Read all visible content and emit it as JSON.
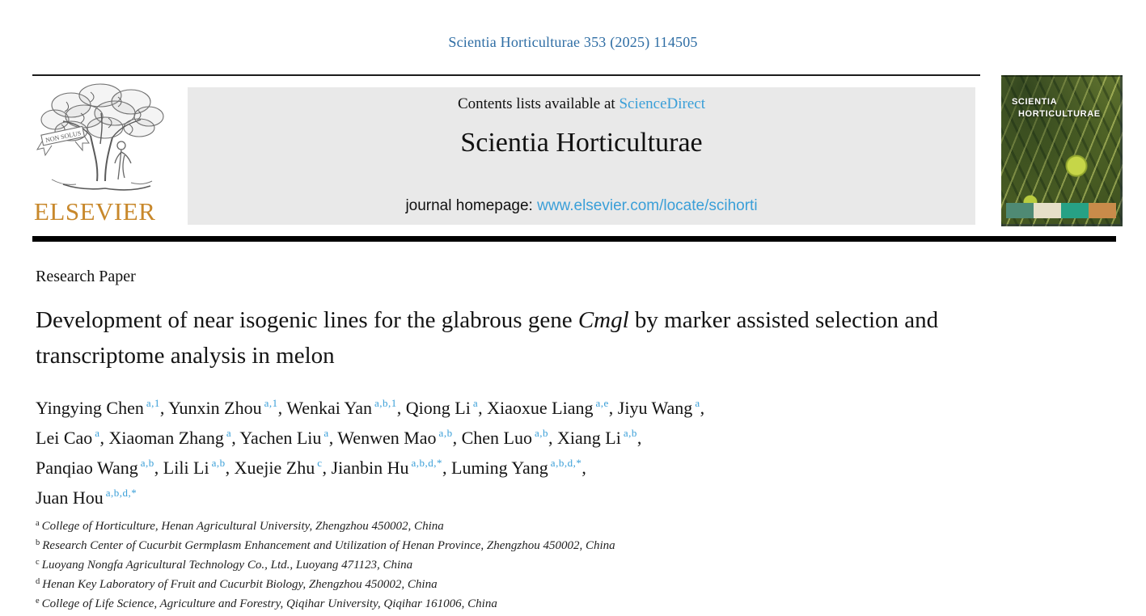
{
  "header": {
    "citation": "Scientia Horticulturae 353 (2025) 114505"
  },
  "banner": {
    "contents_prefix": "Contents lists available at ",
    "sciencedirect_label": "ScienceDirect",
    "journal_title": "Scientia Horticulturae",
    "homepage_prefix": "journal homepage: ",
    "homepage_url": "www.elsevier.com/locate/scihorti"
  },
  "logo": {
    "publisher": "ELSEVIER",
    "motto": "NON SOLUS"
  },
  "cover": {
    "title_line1": "SCIENTIA",
    "title_line2": "HORTICULTURAE",
    "strip_colors": [
      "#4f8a74",
      "#e6dfc8",
      "#27a185",
      "#c98b4a"
    ]
  },
  "article": {
    "type_label": "Research Paper",
    "title_pre": "Development of near isogenic lines for the glabrous gene ",
    "title_italic": "Cmgl",
    "title_post": " by marker assisted selection and transcriptome analysis in melon",
    "authors": [
      {
        "name": "Yingying Chen",
        "sup": "a,1"
      },
      {
        "name": "Yunxin Zhou",
        "sup": "a,1"
      },
      {
        "name": "Wenkai Yan",
        "sup": "a,b,1"
      },
      {
        "name": "Qiong Li",
        "sup": "a"
      },
      {
        "name": "Xiaoxue Liang",
        "sup": "a,e"
      },
      {
        "name": "Jiyu Wang",
        "sup": "a",
        "break_after": true
      },
      {
        "name": "Lei Cao",
        "sup": "a"
      },
      {
        "name": "Xiaoman Zhang",
        "sup": "a"
      },
      {
        "name": "Yachen Liu",
        "sup": "a"
      },
      {
        "name": "Wenwen Mao",
        "sup": "a,b"
      },
      {
        "name": "Chen Luo",
        "sup": "a,b"
      },
      {
        "name": "Xiang Li",
        "sup": "a,b",
        "break_after": true
      },
      {
        "name": "Panqiao Wang",
        "sup": "a,b"
      },
      {
        "name": "Lili Li",
        "sup": "a,b"
      },
      {
        "name": "Xuejie Zhu",
        "sup": "c"
      },
      {
        "name": "Jianbin Hu",
        "sup": "a,b,d,*"
      },
      {
        "name": "Luming Yang",
        "sup": "a,b,d,*",
        "break_after": true
      },
      {
        "name": "Juan Hou",
        "sup": "a,b,d,*"
      }
    ],
    "affiliations": [
      {
        "sup": "a",
        "text": "College of Horticulture, Henan Agricultural University, Zhengzhou 450002, China"
      },
      {
        "sup": "b",
        "text": "Research Center of Cucurbit Germplasm Enhancement and Utilization of Henan Province, Zhengzhou 450002, China"
      },
      {
        "sup": "c",
        "text": "Luoyang Nongfa Agricultural Technology Co., Ltd., Luoyang 471123, China"
      },
      {
        "sup": "d",
        "text": "Henan Key Laboratory of Fruit and Cucurbit Biology, Zhengzhou 450002, China"
      },
      {
        "sup": "e",
        "text": "College of Life Science, Agriculture and Forestry, Qiqihar University, Qiqihar 161006, China"
      }
    ]
  },
  "colors": {
    "link_blue": "#3a9fd8",
    "citation_blue": "#2e6da4",
    "elsevier_orange": "#c8882b",
    "banner_gray": "#e9e9e9"
  }
}
